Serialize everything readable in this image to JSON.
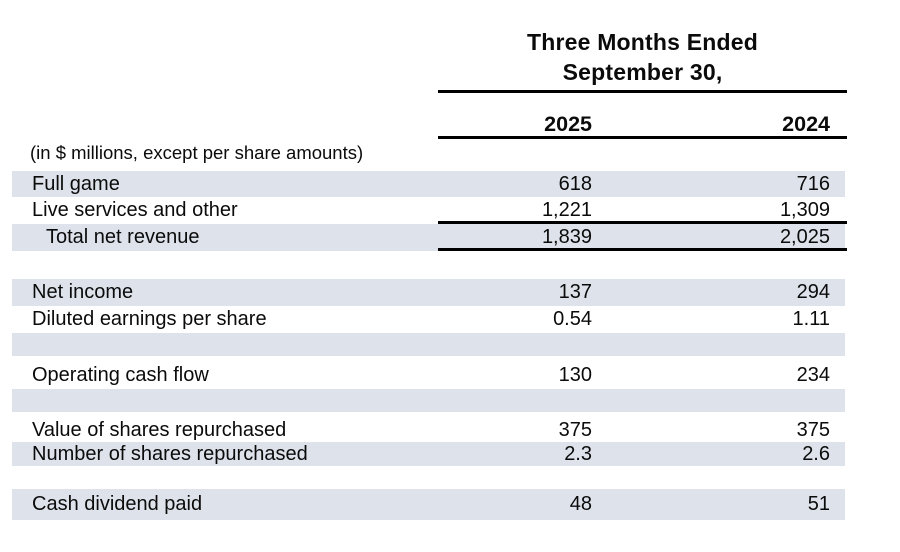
{
  "header": {
    "title_line1": "Three Months Ended",
    "title_line2": "September 30,",
    "col_2025": "2025",
    "col_2024": "2024",
    "note": "(in $ millions, except per share amounts)"
  },
  "colors": {
    "row_shade": "#dee3eb",
    "rule": "#000000",
    "text": "#0b0b0b",
    "background": "#ffffff"
  },
  "table": {
    "columns": [
      "2025",
      "2024"
    ],
    "rows": [
      {
        "label": "Full game",
        "v2025": "618",
        "v2024": "716",
        "shaded": true,
        "rule_below": false
      },
      {
        "label": "Live services and other",
        "v2025": "1,221",
        "v2024": "1,309",
        "shaded": false,
        "rule_below": true
      },
      {
        "label": "Total net revenue",
        "v2025": "1,839",
        "v2024": "2,025",
        "shaded": true,
        "rule_below": true,
        "indented": true
      },
      {
        "label": "Net income",
        "v2025": "137",
        "v2024": "294",
        "shaded": true,
        "rule_below": false
      },
      {
        "label": "Diluted earnings per share",
        "v2025": "0.54",
        "v2024": "1.11",
        "shaded": false,
        "rule_below": false
      },
      {
        "label": "Operating cash flow",
        "v2025": "130",
        "v2024": "234",
        "shaded": false,
        "rule_below": false
      },
      {
        "label": "Value of shares repurchased",
        "v2025": "375",
        "v2024": "375",
        "shaded": false,
        "rule_below": false
      },
      {
        "label": "Number of shares repurchased",
        "v2025": "2.3",
        "v2024": "2.6",
        "shaded": true,
        "rule_below": false
      },
      {
        "label": "Cash dividend paid",
        "v2025": "48",
        "v2024": "51",
        "shaded": true,
        "rule_below": false
      }
    ]
  }
}
